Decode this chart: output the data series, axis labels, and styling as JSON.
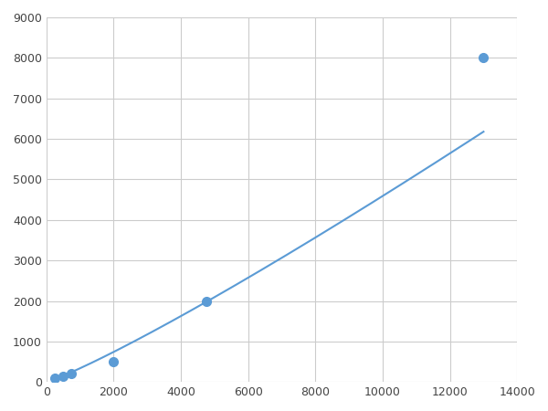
{
  "x": [
    250,
    500,
    750,
    2000,
    4750,
    13000
  ],
  "y": [
    100,
    150,
    200,
    500,
    2000,
    8000
  ],
  "line_color": "#5b9bd5",
  "marker_color": "#5b9bd5",
  "marker_size": 7,
  "line_width": 1.5,
  "xlim": [
    0,
    14000
  ],
  "ylim": [
    0,
    9000
  ],
  "xticks": [
    0,
    2000,
    4000,
    6000,
    8000,
    10000,
    12000,
    14000
  ],
  "yticks": [
    0,
    1000,
    2000,
    3000,
    4000,
    5000,
    6000,
    7000,
    8000,
    9000
  ],
  "grid": true,
  "background_color": "#ffffff",
  "figsize": [
    6.0,
    4.5
  ],
  "dpi": 100
}
